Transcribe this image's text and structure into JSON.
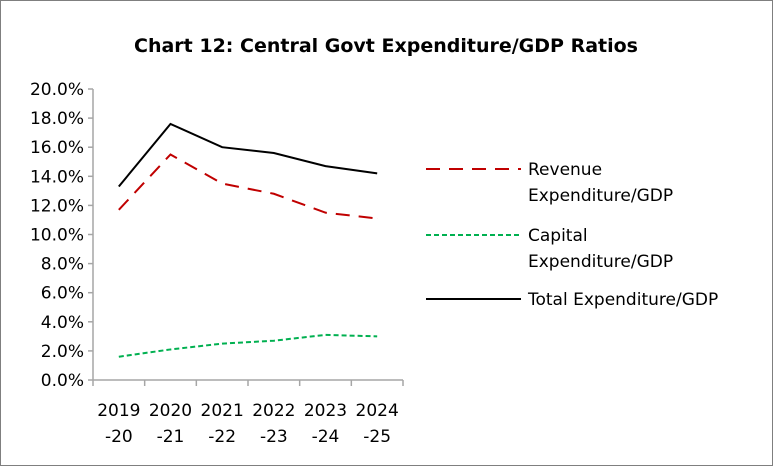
{
  "chart_data": {
    "type": "line",
    "title": "Chart 12: Central Govt Expenditure/GDP Ratios",
    "categories": [
      [
        "2019",
        "-20"
      ],
      [
        "2020",
        "-21"
      ],
      [
        "2021",
        "-22"
      ],
      [
        "2022",
        "-23"
      ],
      [
        "2023",
        "-24"
      ],
      [
        "2024",
        "-25"
      ]
    ],
    "ylim": [
      0,
      20
    ],
    "yticks": [
      "0.0%",
      "2.0%",
      "4.0%",
      "6.0%",
      "8.0%",
      "10.0%",
      "12.0%",
      "14.0%",
      "16.0%",
      "18.0%",
      "20.0%"
    ],
    "grid": false,
    "legend_position": "right",
    "series": [
      {
        "name": [
          "Revenue",
          "Expenditure/GDP"
        ],
        "values": [
          11.7,
          15.5,
          13.5,
          12.8,
          11.5,
          11.1
        ],
        "color": "#c00000",
        "style": "long-dash"
      },
      {
        "name": [
          "Capital",
          "Expenditure/GDP"
        ],
        "values": [
          1.6,
          2.1,
          2.5,
          2.7,
          3.1,
          3.0
        ],
        "color": "#00b050",
        "style": "short-dash"
      },
      {
        "name": [
          "Total Expenditure/GDP"
        ],
        "values": [
          13.3,
          17.6,
          16.0,
          15.6,
          14.7,
          14.2
        ],
        "color": "#000000",
        "style": "solid"
      }
    ]
  }
}
